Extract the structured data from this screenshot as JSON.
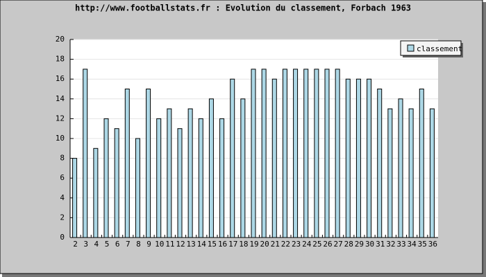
{
  "chart_data": {
    "type": "bar",
    "title": "http://www.footballstats.fr : Evolution du classement, Forbach 1963",
    "categories": [
      "2",
      "3",
      "4",
      "5",
      "6",
      "7",
      "8",
      "9",
      "10",
      "11",
      "12",
      "13",
      "14",
      "15",
      "16",
      "17",
      "18",
      "19",
      "20",
      "21",
      "22",
      "23",
      "24",
      "25",
      "26",
      "27",
      "28",
      "29",
      "30",
      "31",
      "32",
      "33",
      "34",
      "35",
      "36"
    ],
    "series": [
      {
        "name": "classement",
        "color": "#add8e6",
        "values": [
          8,
          17,
          9,
          12,
          11,
          15,
          10,
          15,
          12,
          13,
          11,
          13,
          12,
          14,
          12,
          16,
          14,
          17,
          17,
          16,
          17,
          17,
          17,
          17,
          17,
          17,
          16,
          16,
          16,
          15,
          13,
          14,
          13,
          15,
          13
        ]
      }
    ],
    "ylim": [
      0,
      20
    ],
    "yticks": [
      0,
      2,
      4,
      6,
      8,
      10,
      12,
      14,
      16,
      18,
      20
    ],
    "grid": true,
    "legend": "top-right"
  }
}
